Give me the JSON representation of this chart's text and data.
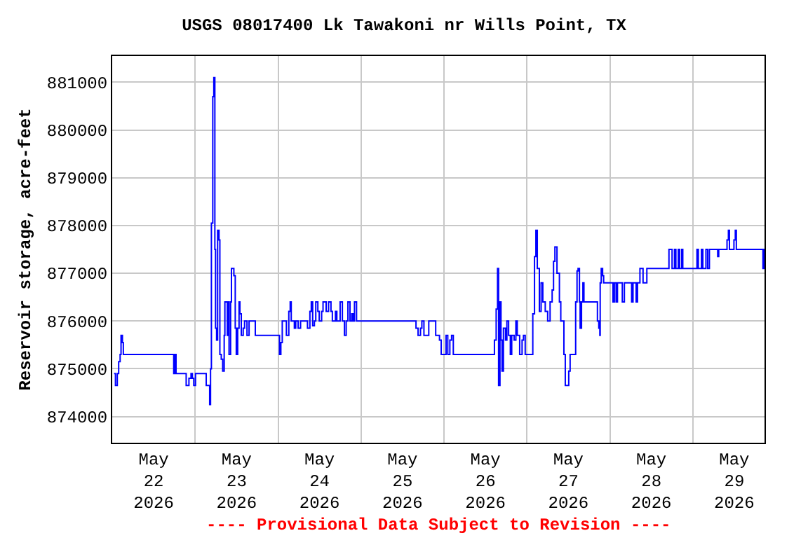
{
  "chart_data": {
    "type": "step",
    "title": "USGS 08017400 Lk Tawakoni nr Wills Point, TX",
    "ylabel": "Reservoir storage, acre-feet",
    "annotations": [
      "---- Provisional Data Subject to Revision ----"
    ],
    "xlim": [
      "2026-05-22T00:00",
      "2026-05-29T20:45"
    ],
    "xticks": [
      {
        "value": "2026-05-22T12:00",
        "label": "May\n22\n2026"
      },
      {
        "value": "2026-05-23T12:00",
        "label": "May\n23\n2026"
      },
      {
        "value": "2026-05-24T12:00",
        "label": "May\n24\n2026"
      },
      {
        "value": "2026-05-25T12:00",
        "label": "May\n25\n2026"
      },
      {
        "value": "2026-05-26T12:00",
        "label": "May\n26\n2026"
      },
      {
        "value": "2026-05-27T12:00",
        "label": "May\n27\n2026"
      },
      {
        "value": "2026-05-28T12:00",
        "label": "May\n28\n2026"
      },
      {
        "value": "2026-05-29T12:00",
        "label": "May\n29\n2026"
      },
      {
        "value": "2026-05-23T00:00",
        "label": null
      },
      {
        "value": "2026-05-24T00:00",
        "label": null
      },
      {
        "value": "2026-05-25T00:00",
        "label": null
      },
      {
        "value": "2026-05-26T00:00",
        "label": null
      },
      {
        "value": "2026-05-27T00:00",
        "label": null
      },
      {
        "value": "2026-05-28T00:00",
        "label": null
      },
      {
        "value": "2026-05-29T00:00",
        "label": null
      }
    ],
    "ylim": [
      873450,
      881550
    ],
    "yticks": [
      874000,
      875000,
      876000,
      877000,
      878000,
      879000,
      880000,
      881000
    ],
    "grid": true,
    "marker": "none",
    "line_style": "solid",
    "series": [
      {
        "color": "#0000ff",
        "x": [
          "2026-05-22T00:32",
          "2026-05-22T00:56",
          "2026-05-22T01:28",
          "2026-05-22T01:52",
          "2026-05-22T02:17",
          "2026-05-22T02:33",
          "2026-05-22T02:57",
          "2026-05-22T03:13",
          "2026-05-22T17:48",
          "2026-05-22T18:04",
          "2026-05-22T18:28",
          "2026-05-22T21:24",
          "2026-05-22T22:12",
          "2026-05-22T22:48",
          "2026-05-22T23:12",
          "2026-05-22T23:36",
          "2026-05-23T00:06",
          "2026-05-23T03:12",
          "2026-05-23T04:12",
          "2026-05-23T04:27",
          "2026-05-23T04:42",
          "2026-05-23T05:06",
          "2026-05-23T05:24",
          "2026-05-23T05:42",
          "2026-05-23T05:54",
          "2026-05-23T06:12",
          "2026-05-23T06:30",
          "2026-05-23T06:54",
          "2026-05-23T07:09",
          "2026-05-23T07:33",
          "2026-05-23T07:58",
          "2026-05-23T08:24",
          "2026-05-23T08:36",
          "2026-05-23T09:18",
          "2026-05-23T09:36",
          "2026-05-23T09:48",
          "2026-05-23T10:15",
          "2026-05-23T10:30",
          "2026-05-23T11:12",
          "2026-05-23T11:36",
          "2026-05-23T11:54",
          "2026-05-23T12:18",
          "2026-05-23T12:42",
          "2026-05-23T12:57",
          "2026-05-23T13:21",
          "2026-05-23T13:54",
          "2026-05-23T14:18",
          "2026-05-23T15:00",
          "2026-05-23T15:36",
          "2026-05-23T17:24",
          "2026-05-24T00:24",
          "2026-05-24T00:48",
          "2026-05-24T01:12",
          "2026-05-24T02:24",
          "2026-05-24T03:06",
          "2026-05-24T03:30",
          "2026-05-24T03:48",
          "2026-05-24T04:42",
          "2026-05-24T05:06",
          "2026-05-24T05:48",
          "2026-05-24T06:30",
          "2026-05-24T08:30",
          "2026-05-24T09:12",
          "2026-05-24T09:36",
          "2026-05-24T10:00",
          "2026-05-24T10:30",
          "2026-05-24T10:54",
          "2026-05-24T11:30",
          "2026-05-24T11:54",
          "2026-05-24T12:36",
          "2026-05-24T13:00",
          "2026-05-24T13:54",
          "2026-05-24T14:36",
          "2026-05-24T15:18",
          "2026-05-24T15:42",
          "2026-05-24T16:36",
          "2026-05-24T17:00",
          "2026-05-24T17:57",
          "2026-05-24T18:36",
          "2026-05-24T19:12",
          "2026-05-24T19:42",
          "2026-05-24T20:12",
          "2026-05-24T20:48",
          "2026-05-24T21:18",
          "2026-05-24T21:42",
          "2026-05-24T22:06",
          "2026-05-24T22:42",
          "2026-05-25T15:54",
          "2026-05-25T16:30",
          "2026-05-25T17:12",
          "2026-05-25T17:36",
          "2026-05-25T18:12",
          "2026-05-25T19:36",
          "2026-05-25T21:36",
          "2026-05-25T22:42",
          "2026-05-25T23:12",
          "2026-05-26T00:36",
          "2026-05-26T01:06",
          "2026-05-26T01:42",
          "2026-05-26T02:12",
          "2026-05-26T02:42",
          "2026-05-26T14:36",
          "2026-05-26T15:06",
          "2026-05-26T15:30",
          "2026-05-26T15:48",
          "2026-05-26T16:12",
          "2026-05-26T16:30",
          "2026-05-26T16:48",
          "2026-05-26T17:12",
          "2026-05-26T17:48",
          "2026-05-26T18:12",
          "2026-05-26T18:42",
          "2026-05-26T19:12",
          "2026-05-26T19:36",
          "2026-05-26T20:18",
          "2026-05-26T20:48",
          "2026-05-26T21:12",
          "2026-05-26T21:54",
          "2026-05-26T22:36",
          "2026-05-26T23:00",
          "2026-05-26T23:30",
          "2026-05-27T01:42",
          "2026-05-27T02:12",
          "2026-05-27T02:36",
          "2026-05-27T03:00",
          "2026-05-27T03:36",
          "2026-05-27T04:06",
          "2026-05-27T04:36",
          "2026-05-27T05:18",
          "2026-05-27T06:00",
          "2026-05-27T06:42",
          "2026-05-27T07:18",
          "2026-05-27T07:42",
          "2026-05-27T08:06",
          "2026-05-27T08:42",
          "2026-05-27T09:24",
          "2026-05-27T09:48",
          "2026-05-27T10:42",
          "2026-05-27T11:06",
          "2026-05-27T12:06",
          "2026-05-27T12:30",
          "2026-05-27T14:06",
          "2026-05-27T14:30",
          "2026-05-27T14:48",
          "2026-05-27T15:12",
          "2026-05-27T15:24",
          "2026-05-27T15:48",
          "2026-05-27T16:12",
          "2026-05-27T16:30",
          "2026-05-27T20:24",
          "2026-05-27T20:48",
          "2026-05-27T21:06",
          "2026-05-27T21:12",
          "2026-05-27T21:30",
          "2026-05-27T21:54",
          "2026-05-27T22:12",
          "2026-05-28T00:54",
          "2026-05-28T01:18",
          "2026-05-28T01:48",
          "2026-05-28T02:12",
          "2026-05-28T03:36",
          "2026-05-28T04:12",
          "2026-05-28T06:18",
          "2026-05-28T06:42",
          "2026-05-28T07:36",
          "2026-05-28T08:00",
          "2026-05-28T08:42",
          "2026-05-28T09:36",
          "2026-05-28T10:42",
          "2026-05-28T17:06",
          "2026-05-28T18:00",
          "2026-05-28T18:42",
          "2026-05-28T19:06",
          "2026-05-28T19:48",
          "2026-05-28T20:12",
          "2026-05-28T20:48",
          "2026-05-28T21:06",
          "2026-05-29T01:12",
          "2026-05-29T01:36",
          "2026-05-29T02:30",
          "2026-05-29T02:54",
          "2026-05-29T03:48",
          "2026-05-29T04:18",
          "2026-05-29T04:48",
          "2026-05-29T07:12",
          "2026-05-29T07:30",
          "2026-05-29T09:54",
          "2026-05-29T10:18",
          "2026-05-29T10:36",
          "2026-05-29T11:54",
          "2026-05-29T12:18",
          "2026-05-29T12:36",
          "2026-05-29T20:18",
          "2026-05-29T20:42",
          "2026-05-29T20:45"
        ],
        "values": [
          874900,
          874650,
          874900,
          875150,
          875300,
          875700,
          875550,
          875300,
          874900,
          875300,
          874900,
          874650,
          874800,
          874900,
          874800,
          874650,
          874900,
          874650,
          874250,
          875000,
          878050,
          880700,
          881100,
          877500,
          875850,
          875600,
          877900,
          877700,
          875300,
          875200,
          874950,
          875700,
          876400,
          875700,
          876400,
          875300,
          876400,
          877100,
          876950,
          875850,
          875300,
          875850,
          876400,
          876150,
          875700,
          875850,
          876000,
          875700,
          876000,
          875700,
          875300,
          875550,
          876000,
          875700,
          876200,
          876400,
          876000,
          875850,
          876000,
          875850,
          876000,
          875850,
          876200,
          876400,
          875900,
          876000,
          876400,
          876200,
          876000,
          876200,
          876400,
          876200,
          876400,
          876200,
          876000,
          876200,
          876000,
          876400,
          876000,
          875700,
          876000,
          876400,
          876000,
          876150,
          876000,
          876400,
          876000,
          875850,
          875700,
          875850,
          876000,
          875700,
          876000,
          875700,
          875600,
          875300,
          875700,
          875300,
          875600,
          875700,
          875300,
          875600,
          876250,
          877100,
          874650,
          876400,
          875600,
          874950,
          875850,
          875600,
          876000,
          875700,
          875300,
          875700,
          875600,
          876000,
          875700,
          875300,
          875600,
          875700,
          875300,
          876150,
          877350,
          877900,
          877100,
          876200,
          876800,
          876400,
          876200,
          876000,
          876400,
          876650,
          877250,
          877550,
          877000,
          876400,
          876000,
          875300,
          874650,
          874950,
          875300,
          876400,
          877050,
          877100,
          876400,
          875850,
          876400,
          876800,
          876400,
          876000,
          875850,
          875700,
          876800,
          877100,
          876950,
          876800,
          876400,
          876800,
          876400,
          876800,
          876400,
          876800,
          876400,
          876800,
          876400,
          876800,
          877100,
          876800,
          877100,
          877500,
          877100,
          877500,
          877100,
          877500,
          877100,
          877500,
          877100,
          877500,
          877100,
          877500,
          877100,
          877500,
          877100,
          877500,
          877350,
          877500,
          877700,
          877900,
          877500,
          877700,
          877900,
          877500,
          877100,
          877500,
          877500
        ]
      }
    ]
  }
}
